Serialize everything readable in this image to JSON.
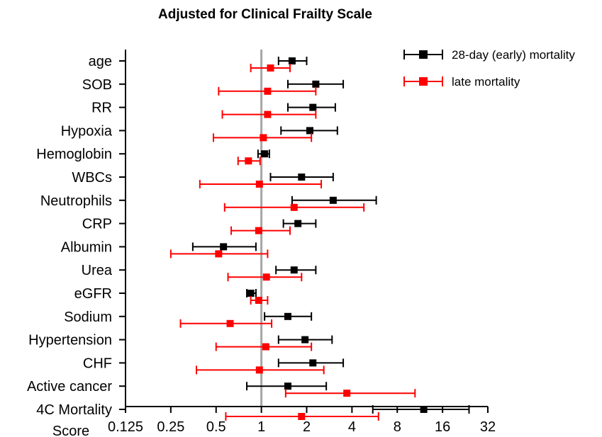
{
  "chart_data": {
    "type": "scatter",
    "subtype": "forest-plot",
    "title": "Adjusted for Clinical Frailty Scale",
    "x_scale": "log2",
    "xlim": [
      0.125,
      32
    ],
    "x_ticks": [
      "0.125",
      "0.25",
      "0.5",
      "1",
      "2",
      "4",
      "8",
      "16",
      "32"
    ],
    "x_tick_values": [
      0.125,
      0.25,
      0.5,
      1,
      2,
      4,
      8,
      16,
      32
    ],
    "reference_line": 1,
    "categories": [
      "age",
      "SOB",
      "RR",
      "Hypoxia",
      "Hemoglobin",
      "WBCs",
      "Neutrophils",
      "CRP",
      "Albumin",
      "Urea",
      "eGFR",
      "Sodium",
      "Hypertension",
      "CHF",
      "Active cancer",
      "4C Mortality Score"
    ],
    "category_lines": [
      [
        "age"
      ],
      [
        "SOB"
      ],
      [
        "RR"
      ],
      [
        "Hypoxia"
      ],
      [
        "Hemoglobin"
      ],
      [
        "WBCs"
      ],
      [
        "Neutrophils"
      ],
      [
        "CRP"
      ],
      [
        "Albumin"
      ],
      [
        "Urea"
      ],
      [
        "eGFR"
      ],
      [
        "Sodium"
      ],
      [
        "Hypertension"
      ],
      [
        "CHF"
      ],
      [
        "Active cancer"
      ],
      [
        "4C Mortality",
        "Score"
      ]
    ],
    "legend_position": "top-right",
    "series": [
      {
        "name": "28-day (early) mortality",
        "color": "#000000",
        "estimate": [
          1.6,
          2.3,
          2.2,
          2.1,
          1.05,
          1.85,
          3.0,
          1.75,
          0.56,
          1.65,
          0.85,
          1.5,
          1.95,
          2.2,
          1.5,
          12.0
        ],
        "lower": [
          1.3,
          1.5,
          1.5,
          1.35,
          0.95,
          1.15,
          1.6,
          1.4,
          0.35,
          1.25,
          0.8,
          1.05,
          1.3,
          1.3,
          0.8,
          5.5
        ],
        "upper": [
          2.0,
          3.5,
          3.1,
          3.2,
          1.13,
          3.0,
          5.8,
          2.3,
          0.92,
          2.3,
          0.92,
          2.15,
          2.95,
          3.5,
          2.7,
          24.0
        ]
      },
      {
        "name": "late mortality",
        "color": "#ff0000",
        "estimate": [
          1.15,
          1.1,
          1.1,
          1.03,
          0.82,
          0.97,
          1.65,
          0.96,
          0.52,
          1.08,
          0.96,
          0.62,
          1.07,
          0.97,
          3.7,
          1.85
        ],
        "lower": [
          0.85,
          0.52,
          0.55,
          0.48,
          0.7,
          0.39,
          0.57,
          0.63,
          0.25,
          0.6,
          0.85,
          0.29,
          0.5,
          0.37,
          1.45,
          0.58
        ],
        "upper": [
          1.55,
          2.3,
          2.3,
          2.15,
          0.98,
          2.5,
          4.8,
          1.55,
          1.1,
          1.85,
          1.1,
          1.17,
          2.15,
          2.6,
          10.5,
          6.0
        ]
      }
    ]
  }
}
